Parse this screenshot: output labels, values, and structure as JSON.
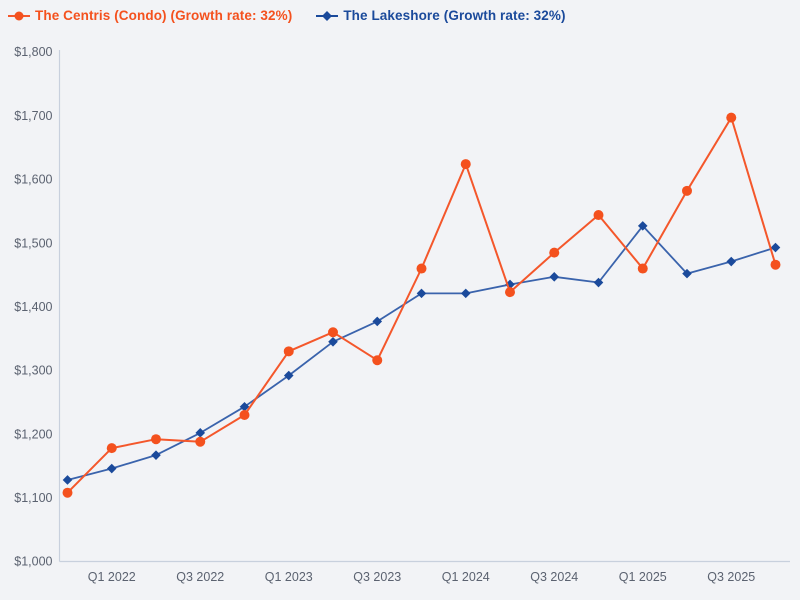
{
  "legend": {
    "items": [
      {
        "label": "The Centris (Condo) (Growth rate: 32%)",
        "color": "#f4511e",
        "line_color": "#f4572b",
        "marker": "circle"
      },
      {
        "label": "The Lakeshore (Growth rate: 32%)",
        "color": "#1b4a9b",
        "line_color": "#3a63ac",
        "marker": "diamond"
      }
    ]
  },
  "chart_data": {
    "type": "line",
    "title": "",
    "xlabel": "",
    "ylabel": "",
    "x": [
      "Q4 2021",
      "Q1 2022",
      "Q2 2022",
      "Q3 2022",
      "Q4 2022",
      "Q1 2023",
      "Q2 2023",
      "Q3 2023",
      "Q4 2023",
      "Q1 2024",
      "Q2 2024",
      "Q3 2024",
      "Q4 2024",
      "Q1 2025",
      "Q2 2025",
      "Q3 2025",
      "Q4 2025"
    ],
    "x_tick_labels": [
      "Q1 2022",
      "Q3 2022",
      "Q1 2023",
      "Q3 2023",
      "Q1 2024",
      "Q3 2024",
      "Q1 2025",
      "Q3 2025"
    ],
    "x_tick_indices": [
      1,
      3,
      5,
      7,
      9,
      11,
      13,
      15
    ],
    "y_tick_labels": [
      "$1,000",
      "$1,100",
      "$1,200",
      "$1,300",
      "$1,400",
      "$1,500",
      "$1,600",
      "$1,700",
      "$1,800"
    ],
    "y_tick_values": [
      1000,
      1100,
      1200,
      1300,
      1400,
      1500,
      1600,
      1700,
      1800
    ],
    "ylim": [
      1000,
      1800
    ],
    "grid": false,
    "legend_position": "top-left",
    "series": [
      {
        "name": "The Centris (Condo)",
        "growth_rate": "32%",
        "marker": "circle",
        "marker_color": "#f4511e",
        "line_color": "#f4572b",
        "values": [
          1108,
          1178,
          1192,
          1188,
          1230,
          1330,
          1360,
          1316,
          1460,
          1624,
          1423,
          1485,
          1544,
          1460,
          1582,
          1697,
          1466
        ]
      },
      {
        "name": "The Lakeshore",
        "growth_rate": "32%",
        "marker": "diamond",
        "marker_color": "#1b4a9b",
        "line_color": "#3a63ac",
        "values": [
          1128,
          1146,
          1167,
          1202,
          1243,
          1292,
          1345,
          1377,
          1421,
          1421,
          1435,
          1447,
          1438,
          1527,
          1452,
          1471,
          1493
        ]
      }
    ],
    "axis_color": "#c8d0dd",
    "tick_label_color": "#5b6270",
    "background_color": "#f2f3f6"
  }
}
